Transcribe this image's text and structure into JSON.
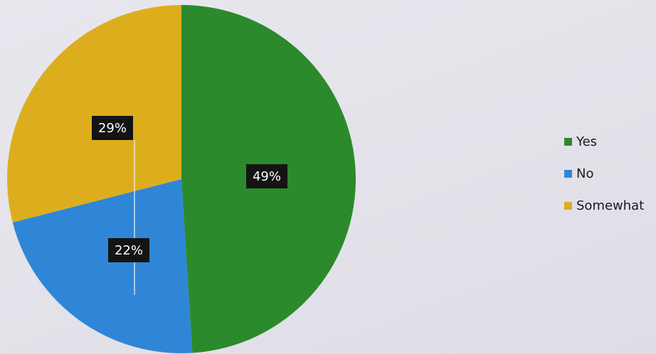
{
  "chart_data": {
    "type": "pie",
    "categories": [
      "Yes",
      "No",
      "Somewhat"
    ],
    "values": [
      49,
      22,
      29
    ],
    "unit": "%",
    "data_labels": [
      "49%",
      "22%",
      "29%"
    ],
    "colors": [
      "#2b8a2b",
      "#2f86d6",
      "#dcae1e"
    ],
    "legend_position": "right",
    "title": ""
  }
}
